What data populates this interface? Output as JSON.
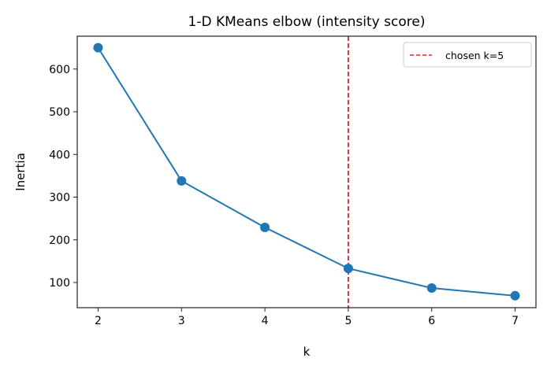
{
  "chart_data": {
    "type": "line",
    "title": "1-D KMeans elbow (intensity score)",
    "xlabel": "k",
    "ylabel": "Inertia",
    "x": [
      2,
      3,
      4,
      5,
      6,
      7
    ],
    "series": [
      {
        "values": [
          650,
          338,
          229,
          133,
          87,
          69
        ],
        "color": "#1f77b4",
        "marker": "circle"
      }
    ],
    "xlim": [
      1.75,
      7.25
    ],
    "ylim": [
      41,
      677
    ],
    "xticks": [
      "2",
      "3",
      "4",
      "5",
      "6",
      "7"
    ],
    "yticks": [
      "100",
      "200",
      "300",
      "400",
      "500",
      "600"
    ],
    "vline": {
      "x": 5,
      "label": "chosen k=5",
      "color": "#d62728",
      "style": "dashed"
    },
    "legend": {
      "placement": "top-right",
      "entries": [
        "chosen k=5"
      ]
    },
    "grid": false
  }
}
